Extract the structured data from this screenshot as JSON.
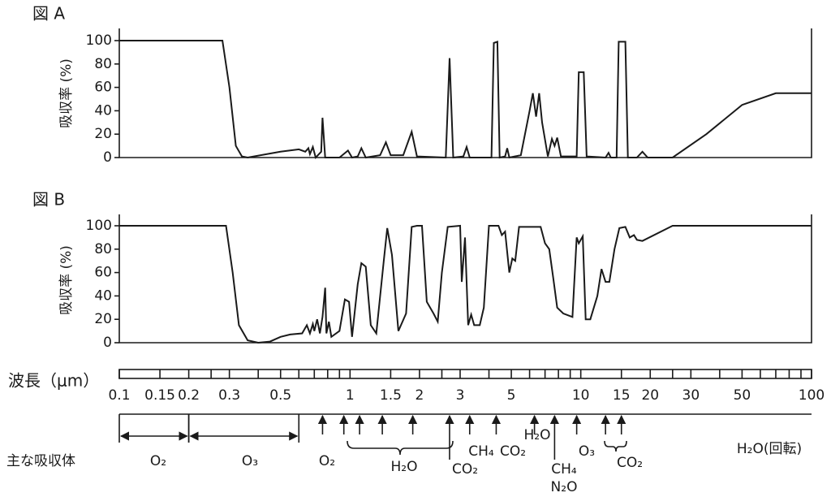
{
  "chart_data": [
    {
      "type": "line",
      "title": "図 A",
      "y_label": "吸収率 (%)",
      "xscale": "log",
      "xlim": [
        0.1,
        100
      ],
      "ylim": [
        0,
        100
      ],
      "yticks": [
        0,
        20,
        40,
        60,
        80,
        100
      ],
      "color": "#1a1a1a",
      "x": [
        0.1,
        0.28,
        0.3,
        0.32,
        0.34,
        0.36,
        0.5,
        0.6,
        0.64,
        0.66,
        0.67,
        0.69,
        0.71,
        0.75,
        0.76,
        0.78,
        0.9,
        0.98,
        1.02,
        1.08,
        1.12,
        1.17,
        1.35,
        1.43,
        1.5,
        1.7,
        1.85,
        1.95,
        2.6,
        2.7,
        2.8,
        3.1,
        3.2,
        3.3,
        4.1,
        4.2,
        4.35,
        4.45,
        4.7,
        4.8,
        4.9,
        5.5,
        6.0,
        6.2,
        6.4,
        6.6,
        6.8,
        7.2,
        7.5,
        7.7,
        7.9,
        8.2,
        9.6,
        9.8,
        10.3,
        10.6,
        12.8,
        13.2,
        13.5,
        14.3,
        14.6,
        15.6,
        16.0,
        17.5,
        18.5,
        19.5,
        25,
        35,
        50,
        70,
        100
      ],
      "values": [
        100,
        100,
        60,
        10,
        1,
        0,
        5,
        7,
        5,
        8,
        3,
        9,
        0,
        5,
        34,
        0,
        0,
        6,
        0,
        1,
        8,
        0,
        2,
        13,
        2,
        2,
        22,
        1,
        0,
        85,
        0,
        1,
        9,
        0,
        0,
        98,
        99,
        0,
        1,
        8,
        0,
        2,
        40,
        55,
        35,
        55,
        30,
        1,
        16,
        10,
        17,
        1,
        1,
        73,
        73,
        1,
        0,
        4,
        0,
        0,
        99,
        99,
        0,
        0,
        5,
        0,
        0,
        20,
        45,
        55,
        55
      ]
    },
    {
      "type": "line",
      "title": "図 B",
      "y_label": "吸収率 (%)",
      "xscale": "log",
      "xlim": [
        0.1,
        100
      ],
      "ylim": [
        0,
        100
      ],
      "yticks": [
        0,
        20,
        40,
        60,
        80,
        100
      ],
      "color": "#1a1a1a",
      "x": [
        0.1,
        0.29,
        0.31,
        0.33,
        0.36,
        0.4,
        0.45,
        0.5,
        0.55,
        0.62,
        0.65,
        0.67,
        0.69,
        0.7,
        0.72,
        0.74,
        0.76,
        0.78,
        0.79,
        0.81,
        0.83,
        0.9,
        0.95,
        0.99,
        1.02,
        1.08,
        1.12,
        1.17,
        1.23,
        1.3,
        1.4,
        1.45,
        1.52,
        1.62,
        1.75,
        1.85,
        1.95,
        2.05,
        2.15,
        2.3,
        2.4,
        2.5,
        2.65,
        3.0,
        3.05,
        3.15,
        3.25,
        3.35,
        3.45,
        3.65,
        3.8,
        4.0,
        4.4,
        4.55,
        4.7,
        4.9,
        5.05,
        5.2,
        5.4,
        6.7,
        7.0,
        7.3,
        7.6,
        7.9,
        8.4,
        9.2,
        9.6,
        9.8,
        10.2,
        10.5,
        11,
        11.8,
        12.3,
        12.8,
        13.3,
        14,
        14.7,
        15.6,
        16.3,
        17,
        17.5,
        18.5,
        25,
        100
      ],
      "values": [
        100,
        100,
        60,
        15,
        2,
        0,
        1,
        5,
        7,
        8,
        15,
        8,
        16,
        10,
        20,
        8,
        22,
        47,
        8,
        18,
        5,
        10,
        37,
        35,
        5,
        50,
        68,
        65,
        15,
        8,
        70,
        98,
        75,
        10,
        25,
        99,
        100,
        100,
        35,
        25,
        18,
        60,
        99,
        100,
        52,
        90,
        15,
        24,
        15,
        15,
        30,
        100,
        100,
        92,
        95,
        60,
        72,
        70,
        99,
        99,
        85,
        80,
        55,
        30,
        25,
        22,
        90,
        85,
        91,
        20,
        20,
        40,
        63,
        52,
        52,
        80,
        98,
        99,
        90,
        92,
        88,
        87,
        100,
        100
      ]
    }
  ],
  "wavelength_axis": {
    "label": "波長（μm）",
    "lim": [
      0.1,
      100
    ],
    "ticks": [
      0.1,
      0.15,
      0.2,
      0.3,
      0.5,
      1,
      1.5,
      2,
      3,
      5,
      10,
      15,
      20,
      30,
      50,
      100
    ],
    "divisions": [
      0.25,
      0.4,
      0.6,
      0.7,
      0.8,
      0.9,
      2.5,
      4,
      6,
      7,
      8,
      9,
      25,
      40,
      60,
      70,
      80,
      90
    ]
  },
  "absorbers": {
    "label": "主な吸収体",
    "ranges": [
      [
        0.1,
        0.2
      ],
      [
        0.2,
        0.6
      ]
    ],
    "arrows": [
      0.76,
      0.94,
      1.1,
      1.38,
      1.87,
      2.7,
      3.3,
      4.3,
      6.3,
      7.7,
      9.6,
      12.8,
      15
    ],
    "gases": [
      "O₂",
      "O₃",
      "O₂",
      "H₂O",
      "CO₂",
      "CH₄",
      "CO₂",
      "H₂O",
      "CH₄",
      "N₂O",
      "O₃",
      "CO₂",
      "H₂O(回転)"
    ]
  }
}
